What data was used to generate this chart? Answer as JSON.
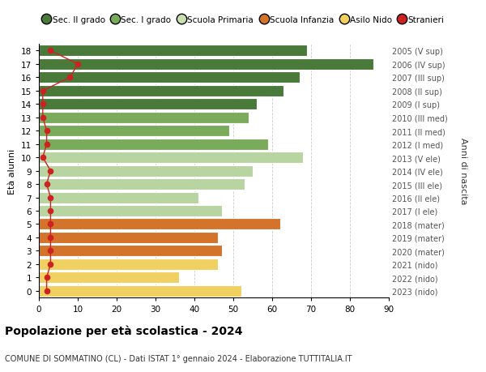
{
  "ages": [
    18,
    17,
    16,
    15,
    14,
    13,
    12,
    11,
    10,
    9,
    8,
    7,
    6,
    5,
    4,
    3,
    2,
    1,
    0
  ],
  "bar_values": [
    69,
    86,
    67,
    63,
    56,
    54,
    49,
    59,
    68,
    55,
    53,
    41,
    47,
    62,
    46,
    47,
    46,
    36,
    52
  ],
  "stranieri": [
    3,
    10,
    8,
    1,
    1,
    1,
    2,
    2,
    1,
    3,
    2,
    3,
    3,
    3,
    3,
    3,
    3,
    2,
    2
  ],
  "right_labels": [
    "2005 (V sup)",
    "2006 (IV sup)",
    "2007 (III sup)",
    "2008 (II sup)",
    "2009 (I sup)",
    "2010 (III med)",
    "2011 (II med)",
    "2012 (I med)",
    "2013 (V ele)",
    "2014 (IV ele)",
    "2015 (III ele)",
    "2016 (II ele)",
    "2017 (I ele)",
    "2018 (mater)",
    "2019 (mater)",
    "2020 (mater)",
    "2021 (nido)",
    "2022 (nido)",
    "2023 (nido)"
  ],
  "bar_colors": [
    "#4a7a3a",
    "#4a7a3a",
    "#4a7a3a",
    "#4a7a3a",
    "#4a7a3a",
    "#7aab5a",
    "#7aab5a",
    "#7aab5a",
    "#b8d4a0",
    "#b8d4a0",
    "#b8d4a0",
    "#b8d4a0",
    "#b8d4a0",
    "#d4742a",
    "#d4742a",
    "#d4742a",
    "#f0d060",
    "#f0d060",
    "#f0d060"
  ],
  "legend_labels": [
    "Sec. II grado",
    "Sec. I grado",
    "Scuola Primaria",
    "Scuola Infanzia",
    "Asilo Nido",
    "Stranieri"
  ],
  "legend_colors": [
    "#4a7a3a",
    "#7aab5a",
    "#c8deb0",
    "#d4742a",
    "#f0d060",
    "#cc2222"
  ],
  "title": "Popolazione per età scolastica - 2024",
  "subtitle": "COMUNE DI SOMMATINO (CL) - Dati ISTAT 1° gennaio 2024 - Elaborazione TUTTITALIA.IT",
  "ylabel_left": "Età alunni",
  "ylabel_right": "Anni di nascita",
  "xlim": [
    0,
    90
  ],
  "xticks": [
    0,
    10,
    20,
    30,
    40,
    50,
    60,
    70,
    80,
    90
  ],
  "stranieri_color": "#cc2222",
  "bar_height": 0.85,
  "grid_color": "#cccccc"
}
